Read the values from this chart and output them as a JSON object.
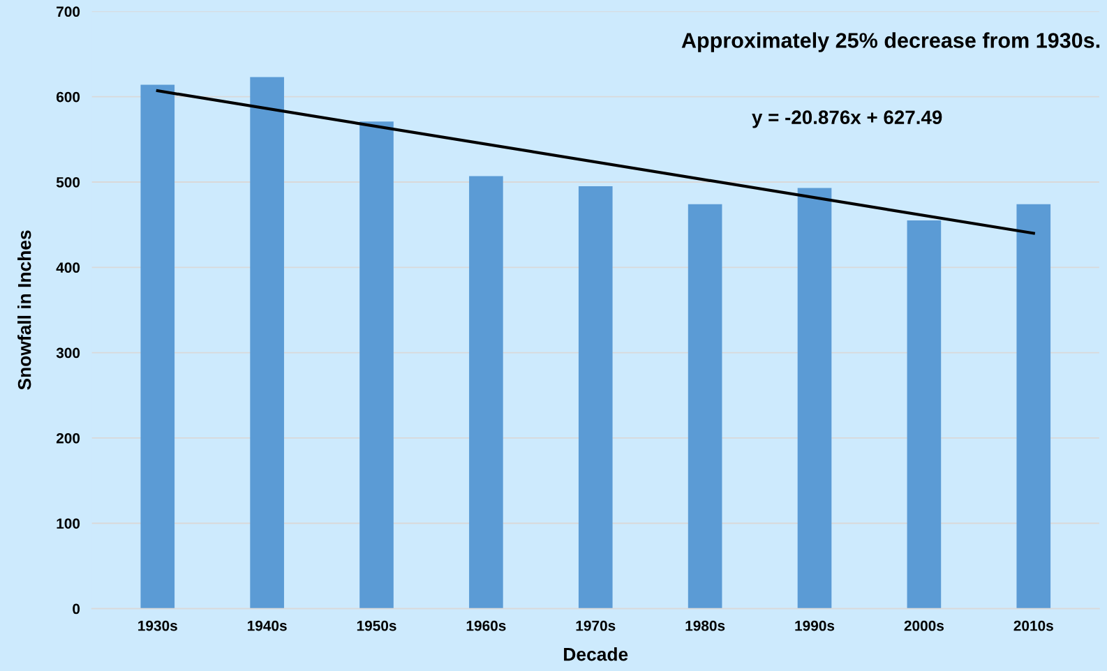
{
  "chart_data": {
    "type": "bar",
    "xlabel": "Decade",
    "ylabel": "Snowfall in Inches",
    "categories": [
      "1930s",
      "1940s",
      "1950s",
      "1960s",
      "1970s",
      "1980s",
      "1990s",
      "2000s",
      "2010s"
    ],
    "series": [
      {
        "color": "#5b9bd5",
        "values": [
          614,
          623,
          571,
          507,
          495,
          474,
          493,
          455,
          474
        ]
      },
      {
        "type": "line",
        "color": "#000000",
        "x": [
          "1930s",
          "2010s"
        ],
        "values": [
          607,
          440
        ]
      }
    ],
    "ylim": [
      0,
      700
    ],
    "yticks": [
      0,
      100,
      200,
      300,
      400,
      500,
      600,
      700
    ],
    "grid": "y",
    "annotations": [
      "Approximately 25% decrease from 1930s.",
      "y = -20.876x + 627.49"
    ]
  }
}
